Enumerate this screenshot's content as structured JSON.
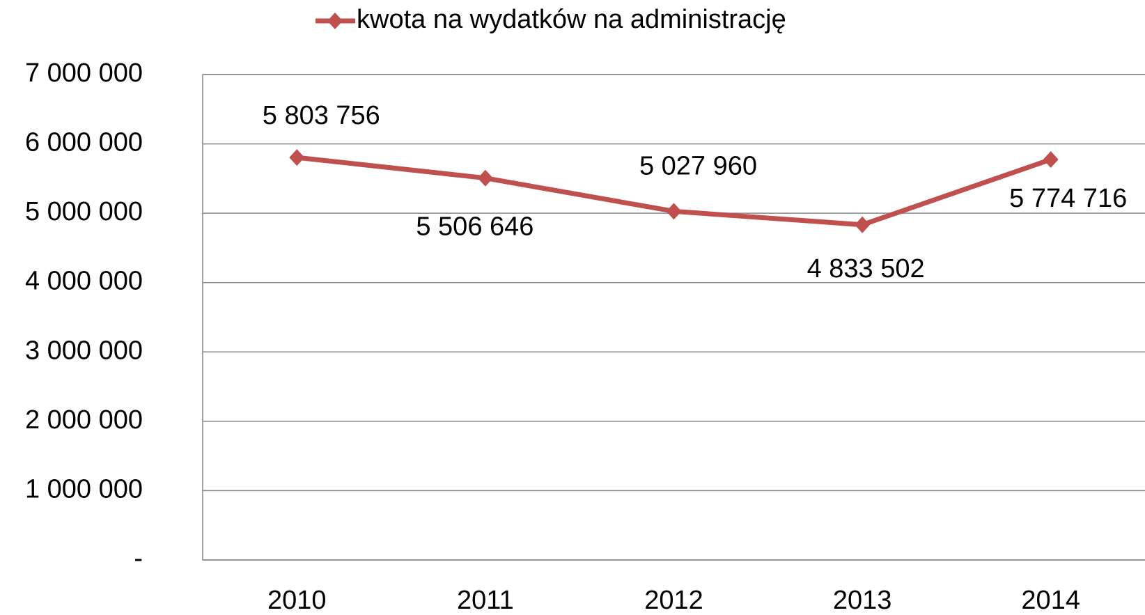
{
  "chart_data": {
    "type": "line",
    "categories": [
      "2010",
      "2011",
      "2012",
      "2013",
      "2014"
    ],
    "series": [
      {
        "name": "kwota na wydatków na administrację",
        "color": "#c0504d",
        "values": [
          5803756,
          5506646,
          5027960,
          4833502,
          5774716
        ],
        "value_labels": [
          "5 803 756",
          "5 506 646",
          "5 027 960",
          "4 833 502",
          "5 774 716"
        ]
      }
    ],
    "ylim": [
      0,
      7000000
    ],
    "yticks": [
      {
        "value": 0,
        "label": "-"
      },
      {
        "value": 1000000,
        "label": "1 000 000"
      },
      {
        "value": 2000000,
        "label": "2 000 000"
      },
      {
        "value": 3000000,
        "label": "3 000 000"
      },
      {
        "value": 4000000,
        "label": "4 000 000"
      },
      {
        "value": 5000000,
        "label": "5 000 000"
      },
      {
        "value": 6000000,
        "label": "6 000 000"
      },
      {
        "value": 7000000,
        "label": "7 000 000"
      }
    ],
    "grid": true,
    "legend": "top"
  }
}
